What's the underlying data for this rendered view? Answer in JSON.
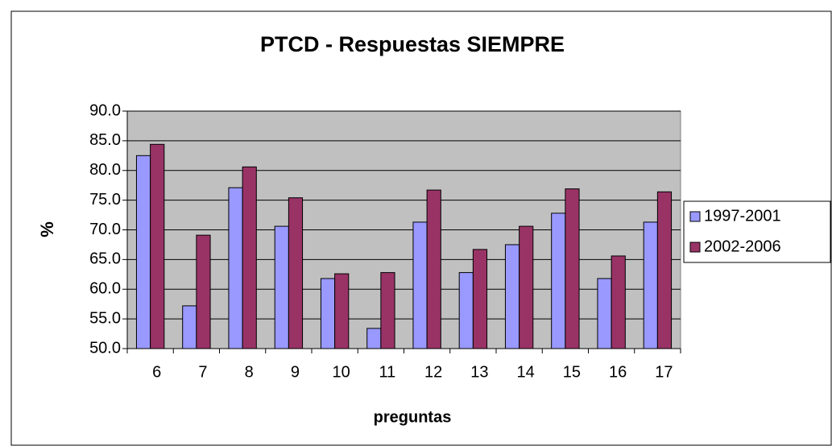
{
  "chart_data": {
    "type": "bar",
    "title": "PTCD - Respuestas SIEMPRE",
    "x_label": "preguntas",
    "y_label": "%",
    "categories": [
      "6",
      "7",
      "8",
      "9",
      "10",
      "11",
      "12",
      "13",
      "14",
      "15",
      "16",
      "17"
    ],
    "series": [
      {
        "name": "1997-2001",
        "color": "#9999ff",
        "values": [
          82.5,
          57.2,
          77.1,
          70.6,
          61.8,
          53.4,
          71.3,
          62.8,
          67.5,
          72.8,
          61.8,
          71.3
        ]
      },
      {
        "name": "2002-2006",
        "color": "#993366",
        "values": [
          84.4,
          69.1,
          80.6,
          75.4,
          62.6,
          62.8,
          76.7,
          66.7,
          70.6,
          76.9,
          65.6,
          76.4
        ]
      }
    ],
    "ylim": [
      50,
      90
    ],
    "yticks": [
      {
        "value": 50,
        "label": "50.0"
      },
      {
        "value": 55,
        "label": "55.0"
      },
      {
        "value": 60,
        "label": "60.0"
      },
      {
        "value": 65,
        "label": "65.0"
      },
      {
        "value": 70,
        "label": "70.0"
      },
      {
        "value": 75,
        "label": "75.0"
      },
      {
        "value": 80,
        "label": "80.0"
      },
      {
        "value": 85,
        "label": "85.0"
      },
      {
        "value": 90,
        "label": "90.0"
      }
    ],
    "grid": true,
    "legend": "right",
    "plot_background": "#c0c0c0"
  }
}
